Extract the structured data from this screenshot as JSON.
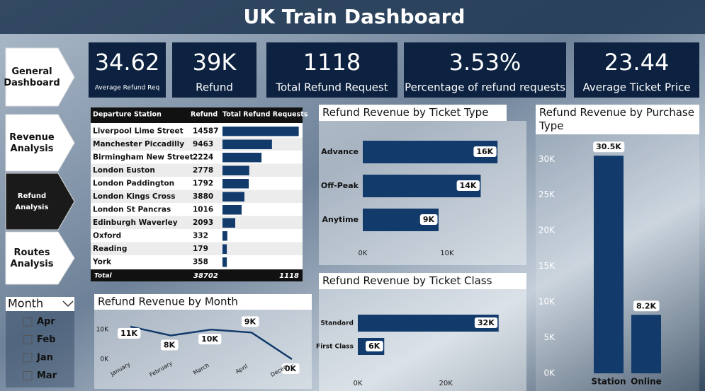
{
  "header": {
    "title": "UK Train Dashboard"
  },
  "nav": [
    "General Dashboard",
    "Revenue Analysis",
    "Refund Analysis",
    "Routes Analysis"
  ],
  "kpis": [
    {
      "value": "34.62",
      "label": "Average Refund Req"
    },
    {
      "value": "39K",
      "label": "Refund"
    },
    {
      "value": "1118",
      "label": "Total Refund Request"
    },
    {
      "value": "3.53%",
      "label": "Percentage of refund requests"
    },
    {
      "value": "23.44",
      "label": "Average Ticket Price"
    }
  ],
  "table": {
    "columns": [
      "Departure Station",
      "Refund",
      "Total Refund Requests"
    ],
    "rows": [
      [
        "Liverpool Lime Street",
        14587,
        299
      ],
      [
        "Manchester Piccadilly",
        9463,
        194
      ],
      [
        "Birmingham New Street",
        2224,
        153
      ],
      [
        "London Euston",
        2778,
        105
      ],
      [
        "London Paddington",
        1792,
        103
      ],
      [
        "London Kings Cross",
        3880,
        86
      ],
      [
        "London St Pancras",
        1016,
        75
      ],
      [
        "Edinburgh Waverley",
        2093,
        50
      ],
      [
        "Oxford",
        332,
        19
      ],
      [
        "Reading",
        179,
        17
      ],
      [
        "York",
        358,
        17
      ]
    ],
    "total": [
      "Total",
      38702,
      1118
    ]
  },
  "slicer": {
    "title": "Month",
    "items": [
      "Apr",
      "Feb",
      "Jan",
      "Mar"
    ]
  },
  "chart_data": [
    {
      "type": "bar",
      "orientation": "horizontal",
      "title": "Refund Revenue by Ticket Type",
      "categories": [
        "Advance",
        "Off-Peak",
        "Anytime"
      ],
      "values": [
        16000,
        14000,
        9000
      ],
      "value_labels": [
        "16K",
        "14K",
        "9K"
      ],
      "color": "#123a6b",
      "xlim": [
        0,
        18000
      ],
      "xticks": [
        {
          "value": 0,
          "label": "0K"
        },
        {
          "value": 10000,
          "label": "10K"
        }
      ]
    },
    {
      "type": "bar",
      "orientation": "horizontal",
      "title": "Refund Revenue by Ticket Class",
      "categories": [
        "Standard",
        "First Class"
      ],
      "values": [
        32000,
        6000
      ],
      "value_labels": [
        "32K",
        "6K"
      ],
      "color": "#123a6b",
      "xlim": [
        0,
        38000
      ],
      "xticks": [
        {
          "value": 0,
          "label": "0K"
        },
        {
          "value": 20000,
          "label": "20K"
        }
      ]
    },
    {
      "type": "bar",
      "orientation": "vertical",
      "title": "Refund Revenue by Purchase Type",
      "categories": [
        "Station",
        "Online"
      ],
      "values": [
        30500,
        8200
      ],
      "value_labels": [
        "30.5K",
        "8.2K"
      ],
      "color": "#123a6b",
      "ylim": [
        0,
        33000
      ],
      "yticks": [
        {
          "value": 0,
          "label": "0K"
        },
        {
          "value": 5000,
          "label": "5K"
        },
        {
          "value": 10000,
          "label": "10K"
        },
        {
          "value": 15000,
          "label": "15K"
        },
        {
          "value": 20000,
          "label": "20K"
        },
        {
          "value": 25000,
          "label": "25K"
        },
        {
          "value": 30000,
          "label": "30K"
        }
      ]
    },
    {
      "type": "line",
      "title": "Refund Revenue by Month",
      "categories": [
        "January",
        "February",
        "March",
        "April",
        "Decem..."
      ],
      "values": [
        11000,
        8000,
        10000,
        9000,
        0
      ],
      "value_labels": [
        "11K",
        "8K",
        "10K",
        "9K",
        "0K"
      ],
      "color": "#123a6b",
      "ylim": [
        0,
        16000
      ],
      "yticks": [
        {
          "value": 0,
          "label": "0K"
        },
        {
          "value": 10000,
          "label": "10K"
        }
      ]
    }
  ]
}
